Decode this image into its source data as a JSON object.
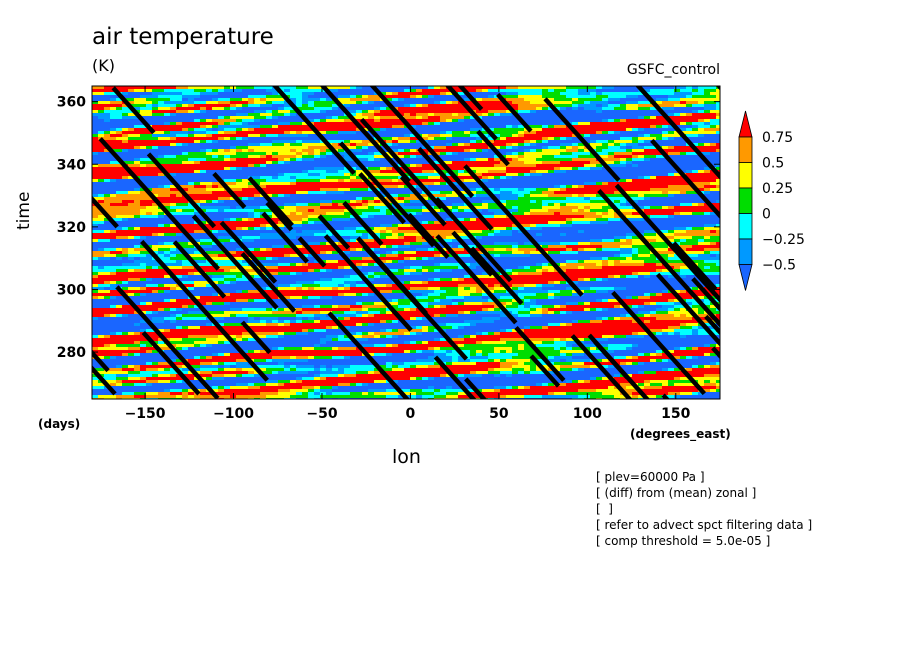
{
  "chart_data": {
    "type": "heatmap",
    "title": "air temperature",
    "units": "(K)",
    "source_label": "GSFC_control",
    "xlabel": "lon",
    "ylabel": "time",
    "x_unit_label": "(degrees_east)",
    "y_unit_label": "(days)",
    "xlim": [
      -180,
      175
    ],
    "ylim": [
      265,
      365
    ],
    "xticks": [
      -150,
      -100,
      -50,
      0,
      50,
      100,
      150
    ],
    "yticks": [
      280,
      300,
      320,
      340,
      360
    ],
    "colorbar": {
      "levels": [
        "0.75",
        "0.5",
        "0.25",
        "0",
        "-0.25",
        "-0.5"
      ],
      "display_labels": [
        "0.75",
        "0.5",
        "0.25",
        "0",
        "−0.25",
        "−0.5"
      ],
      "colors": [
        "#ff0000",
        "#ff9900",
        "#ffff00",
        "#00dd00",
        "#00ffff",
        "#0099ff",
        "#1a66ff"
      ],
      "extend": "both"
    },
    "overlay": {
      "description_color": "#000000",
      "stroke_slope_deg_per_day": -1.6
    },
    "annotations": [
      "[ plev=60000 Pa ]",
      "[ (diff) from (mean) zonal ]",
      "[  ]",
      "[ refer to advect spct filtering data ]",
      "[ comp threshold = 5.0e-05 ]"
    ]
  }
}
